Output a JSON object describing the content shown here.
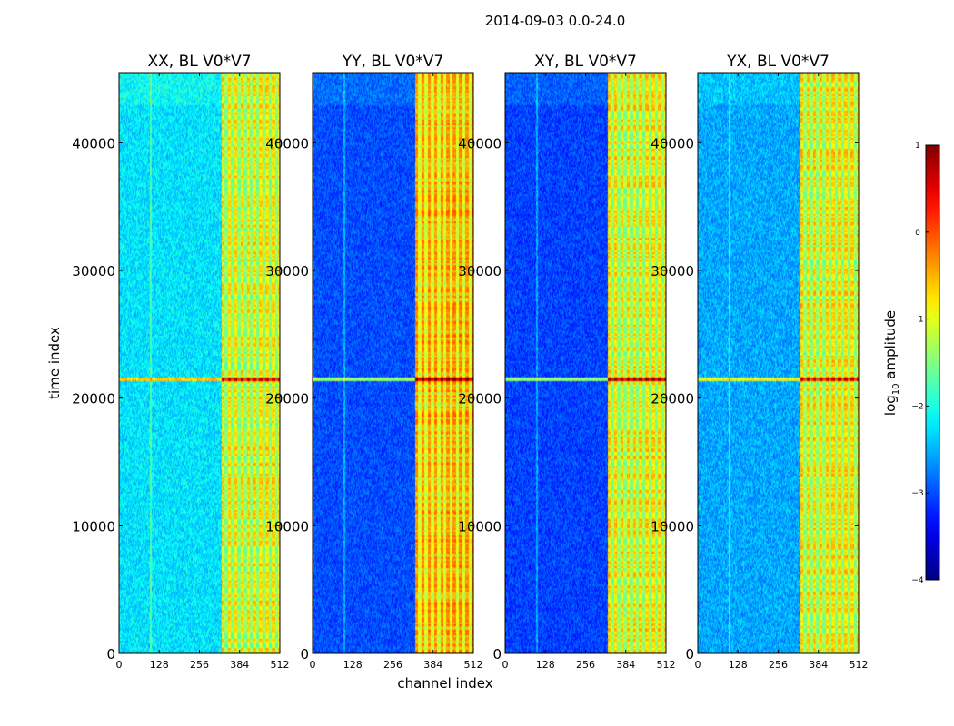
{
  "chart_data": {
    "type": "heatmap",
    "suptitle": "2014-09-03 0.0-24.0",
    "xlabel": "channel index",
    "ylabel": "time index",
    "x_ticks": [
      "0",
      "128",
      "256",
      "384",
      "512"
    ],
    "y_ticks": [
      "0",
      "10000",
      "20000",
      "30000",
      "40000"
    ],
    "xlim": [
      0,
      512
    ],
    "ylim": [
      0,
      45500
    ],
    "panels": [
      {
        "title": "XX, BL V0*V7",
        "base": -2.25,
        "noise": 0.35,
        "bright_band_channels": [
          325,
          510
        ],
        "band_level": -1.0
      },
      {
        "title": "YY, BL V0*V7",
        "base": -3.0,
        "noise": 0.3,
        "bright_band_channels": [
          325,
          510
        ],
        "band_level": -0.6
      },
      {
        "title": "XY, BL V0*V7",
        "base": -3.05,
        "noise": 0.3,
        "bright_band_channels": [
          325,
          510
        ],
        "band_level": -0.95
      },
      {
        "title": "YX, BL V0*V7",
        "base": -2.55,
        "noise": 0.35,
        "bright_band_channels": [
          325,
          510
        ],
        "band_level": -0.95
      }
    ],
    "colorbar": {
      "label_prefix": "log",
      "label_sub": "10",
      "label_suffix": " amplitude",
      "ticks": [
        "1",
        "0",
        "−1",
        "−2",
        "−3",
        "−4"
      ],
      "range": [
        -4,
        1
      ],
      "colormap": "jet"
    }
  }
}
